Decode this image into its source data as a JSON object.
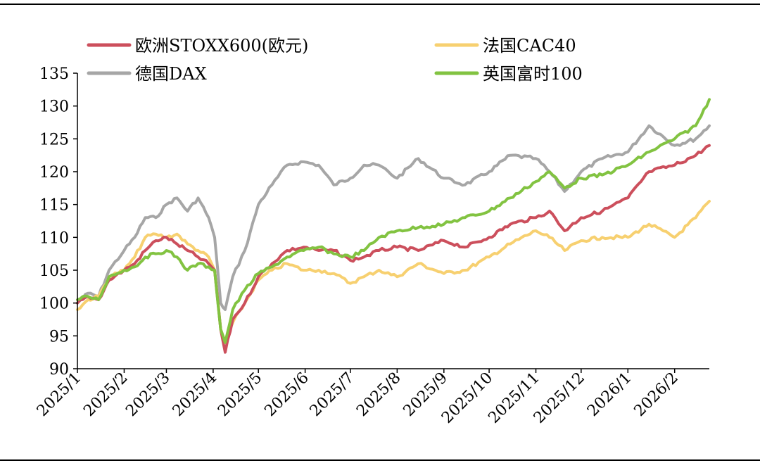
{
  "chart_data": {
    "type": "line",
    "title": "",
    "xlabel": "",
    "ylabel": "",
    "ylim": [
      90,
      135
    ],
    "yticks": [
      90,
      95,
      100,
      105,
      110,
      115,
      120,
      125,
      130,
      135
    ],
    "x_ticks": [
      "2025/1",
      "2025/2",
      "2025/3",
      "2025/4",
      "2025/5",
      "2025/6",
      "2025/7",
      "2025/8",
      "2025/9",
      "2025/10",
      "2025/11",
      "2025/12",
      "2026/1",
      "2026/2"
    ],
    "x_end": "2026/2/24",
    "grid": false,
    "legend": "top, two columns",
    "series": [
      {
        "name": "欧洲STOXX600(欧元)",
        "color": "#cc4f5c",
        "points": [
          [
            "2025-01-01",
            100
          ],
          [
            "2025-01-08",
            101
          ],
          [
            "2025-01-15",
            100.5
          ],
          [
            "2025-01-22",
            103.5
          ],
          [
            "2025-02-01",
            105
          ],
          [
            "2025-02-08",
            106
          ],
          [
            "2025-02-15",
            108
          ],
          [
            "2025-02-22",
            109.5
          ],
          [
            "2025-03-01",
            110
          ],
          [
            "2025-03-08",
            109
          ],
          [
            "2025-03-15",
            108
          ],
          [
            "2025-03-22",
            107
          ],
          [
            "2025-03-29",
            106
          ],
          [
            "2025-04-02",
            105
          ],
          [
            "2025-04-06",
            96
          ],
          [
            "2025-04-09",
            92.5
          ],
          [
            "2025-04-14",
            97.5
          ],
          [
            "2025-04-22",
            100
          ],
          [
            "2025-05-01",
            104
          ],
          [
            "2025-05-10",
            106
          ],
          [
            "2025-05-20",
            108
          ],
          [
            "2025-05-31",
            108.5
          ],
          [
            "2025-06-10",
            108
          ],
          [
            "2025-06-20",
            108
          ],
          [
            "2025-07-01",
            106.5
          ],
          [
            "2025-07-10",
            107
          ],
          [
            "2025-07-20",
            108
          ],
          [
            "2025-08-01",
            108.5
          ],
          [
            "2025-08-15",
            108
          ],
          [
            "2025-09-01",
            109.5
          ],
          [
            "2025-09-15",
            108.5
          ],
          [
            "2025-10-01",
            110
          ],
          [
            "2025-10-15",
            112
          ],
          [
            "2025-11-01",
            113
          ],
          [
            "2025-11-10",
            114
          ],
          [
            "2025-11-20",
            111
          ],
          [
            "2025-12-01",
            113
          ],
          [
            "2025-12-15",
            114
          ],
          [
            "2026-01-01",
            116
          ],
          [
            "2026-01-15",
            120
          ],
          [
            "2026-02-01",
            121
          ],
          [
            "2026-02-15",
            122.5
          ],
          [
            "2026-02-24",
            124
          ]
        ]
      },
      {
        "name": "法国CAC40",
        "color": "#f7d070",
        "points": [
          [
            "2025-01-01",
            99
          ],
          [
            "2025-01-08",
            100.5
          ],
          [
            "2025-01-15",
            101
          ],
          [
            "2025-01-22",
            104
          ],
          [
            "2025-02-01",
            105
          ],
          [
            "2025-02-08",
            107
          ],
          [
            "2025-02-15",
            110
          ],
          [
            "2025-02-22",
            110.5
          ],
          [
            "2025-03-01",
            110
          ],
          [
            "2025-03-08",
            110.5
          ],
          [
            "2025-03-15",
            109
          ],
          [
            "2025-03-22",
            108
          ],
          [
            "2025-03-29",
            107
          ],
          [
            "2025-04-02",
            105
          ],
          [
            "2025-04-06",
            96
          ],
          [
            "2025-04-09",
            94
          ],
          [
            "2025-04-14",
            97
          ],
          [
            "2025-04-22",
            100
          ],
          [
            "2025-05-01",
            103.5
          ],
          [
            "2025-05-10",
            105
          ],
          [
            "2025-05-20",
            106
          ],
          [
            "2025-05-31",
            105
          ],
          [
            "2025-06-10",
            105
          ],
          [
            "2025-06-20",
            104.5
          ],
          [
            "2025-07-01",
            103
          ],
          [
            "2025-07-10",
            104
          ],
          [
            "2025-07-20",
            105
          ],
          [
            "2025-08-01",
            104
          ],
          [
            "2025-08-15",
            106
          ],
          [
            "2025-09-01",
            104.5
          ],
          [
            "2025-09-15",
            105
          ],
          [
            "2025-10-01",
            107
          ],
          [
            "2025-10-15",
            109
          ],
          [
            "2025-11-01",
            111
          ],
          [
            "2025-11-10",
            110
          ],
          [
            "2025-11-20",
            108
          ],
          [
            "2025-12-01",
            109.5
          ],
          [
            "2025-12-15",
            110
          ],
          [
            "2026-01-01",
            110
          ],
          [
            "2026-01-15",
            112
          ],
          [
            "2026-02-01",
            110
          ],
          [
            "2026-02-15",
            113
          ],
          [
            "2026-02-24",
            115.5
          ]
        ]
      },
      {
        "name": "德国DAX",
        "color": "#a6a6a6",
        "points": [
          [
            "2025-01-01",
            100
          ],
          [
            "2025-01-08",
            101.5
          ],
          [
            "2025-01-15",
            101
          ],
          [
            "2025-01-22",
            105
          ],
          [
            "2025-02-01",
            108
          ],
          [
            "2025-02-08",
            110
          ],
          [
            "2025-02-15",
            113
          ],
          [
            "2025-02-22",
            113
          ],
          [
            "2025-03-01",
            115
          ],
          [
            "2025-03-08",
            116
          ],
          [
            "2025-03-15",
            114
          ],
          [
            "2025-03-22",
            116
          ],
          [
            "2025-03-29",
            113
          ],
          [
            "2025-04-02",
            110
          ],
          [
            "2025-04-06",
            100
          ],
          [
            "2025-04-09",
            99
          ],
          [
            "2025-04-14",
            104
          ],
          [
            "2025-04-22",
            108
          ],
          [
            "2025-05-01",
            115
          ],
          [
            "2025-05-10",
            118
          ],
          [
            "2025-05-20",
            121
          ],
          [
            "2025-05-31",
            121.5
          ],
          [
            "2025-06-10",
            121
          ],
          [
            "2025-06-20",
            118
          ],
          [
            "2025-07-01",
            119
          ],
          [
            "2025-07-10",
            121
          ],
          [
            "2025-07-20",
            121
          ],
          [
            "2025-08-01",
            119
          ],
          [
            "2025-08-15",
            122
          ],
          [
            "2025-09-01",
            119
          ],
          [
            "2025-09-15",
            118
          ],
          [
            "2025-10-01",
            120
          ],
          [
            "2025-10-15",
            122.5
          ],
          [
            "2025-11-01",
            122
          ],
          [
            "2025-11-10",
            120
          ],
          [
            "2025-11-20",
            117
          ],
          [
            "2025-12-01",
            120
          ],
          [
            "2025-12-15",
            122
          ],
          [
            "2026-01-01",
            123
          ],
          [
            "2026-01-15",
            127
          ],
          [
            "2026-02-01",
            124
          ],
          [
            "2026-02-15",
            125
          ],
          [
            "2026-02-24",
            127
          ]
        ]
      },
      {
        "name": "英国富时100",
        "color": "#82c341",
        "points": [
          [
            "2025-01-01",
            100.5
          ],
          [
            "2025-01-08",
            101
          ],
          [
            "2025-01-15",
            100.5
          ],
          [
            "2025-01-22",
            104
          ],
          [
            "2025-02-01",
            105
          ],
          [
            "2025-02-08",
            105.5
          ],
          [
            "2025-02-15",
            107
          ],
          [
            "2025-02-22",
            107.5
          ],
          [
            "2025-03-01",
            108
          ],
          [
            "2025-03-08",
            107
          ],
          [
            "2025-03-15",
            105
          ],
          [
            "2025-03-22",
            106
          ],
          [
            "2025-03-29",
            105.5
          ],
          [
            "2025-04-02",
            105
          ],
          [
            "2025-04-06",
            96
          ],
          [
            "2025-04-09",
            94
          ],
          [
            "2025-04-14",
            99
          ],
          [
            "2025-04-22",
            102
          ],
          [
            "2025-05-01",
            104.5
          ],
          [
            "2025-05-10",
            105.5
          ],
          [
            "2025-05-20",
            107
          ],
          [
            "2025-05-31",
            108
          ],
          [
            "2025-06-10",
            108.5
          ],
          [
            "2025-06-20",
            107.5
          ],
          [
            "2025-07-01",
            107
          ],
          [
            "2025-07-10",
            108
          ],
          [
            "2025-07-20",
            110
          ],
          [
            "2025-08-01",
            111
          ],
          [
            "2025-08-15",
            111.5
          ],
          [
            "2025-09-01",
            112
          ],
          [
            "2025-09-15",
            113
          ],
          [
            "2025-10-01",
            114
          ],
          [
            "2025-10-15",
            116
          ],
          [
            "2025-11-01",
            118.5
          ],
          [
            "2025-11-10",
            120
          ],
          [
            "2025-11-20",
            117.5
          ],
          [
            "2025-12-01",
            119
          ],
          [
            "2025-12-15",
            119.5
          ],
          [
            "2026-01-01",
            121
          ],
          [
            "2026-01-15",
            123
          ],
          [
            "2026-02-01",
            125
          ],
          [
            "2026-02-15",
            127
          ],
          [
            "2026-02-24",
            131
          ]
        ]
      }
    ]
  }
}
